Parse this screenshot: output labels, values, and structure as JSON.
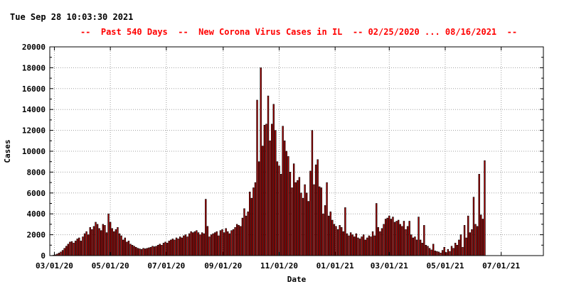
{
  "header": {
    "timestamp": "Tue Sep 28 10:03:30 2021",
    "title": "--  Past 540 Days  --  New Corona Virus Cases in IL  -- 02/25/2020 ... 08/16/2021  --"
  },
  "colors": {
    "bar_fill": "#b00000",
    "bar_outline": "#000000",
    "title": "#ff0000",
    "grid": "#a0a0a0"
  },
  "chart_data": {
    "type": "bar",
    "title": "--  Past 540 Days  --  New Corona Virus Cases in IL  -- 02/25/2020 ... 08/16/2021  --",
    "xlabel": "Date",
    "ylabel": "Cases",
    "date_range": [
      "2020-02-25",
      "2021-08-16"
    ],
    "ylim": [
      0,
      20000
    ],
    "y_ticks": [
      0,
      2000,
      4000,
      6000,
      8000,
      10000,
      12000,
      14000,
      16000,
      18000,
      20000
    ],
    "x_ticks": [
      "03/01/20",
      "05/01/20",
      "07/01/20",
      "09/01/20",
      "11/01/20",
      "01/01/21",
      "03/01/21",
      "05/01/21",
      "07/01/21"
    ],
    "grid": true,
    "legend": "none",
    "bar_interval_days": 2,
    "series": [
      {
        "values": [
          0,
          20,
          40,
          80,
          150,
          250,
          350,
          500,
          700,
          900,
          1100,
          1300,
          1350,
          1200,
          1400,
          1600,
          1700,
          1400,
          1800,
          2100,
          2300,
          2000,
          2700,
          2500,
          2800,
          3200,
          3000,
          2600,
          2400,
          3000,
          2900,
          2200,
          4000,
          3200,
          2600,
          2300,
          2500,
          2700,
          2100,
          1900,
          1500,
          1700,
          1300,
          1400,
          1100,
          1000,
          900,
          800,
          700,
          650,
          600,
          700,
          650,
          700,
          750,
          800,
          900,
          850,
          900,
          1000,
          1100,
          1000,
          1200,
          1300,
          1200,
          1400,
          1500,
          1600,
          1500,
          1700,
          1600,
          1800,
          1700,
          1900,
          2000,
          1800,
          2100,
          2300,
          2200,
          2300,
          2400,
          2200,
          2000,
          2200,
          2100,
          5400,
          2800,
          1800,
          2000,
          2100,
          2200,
          2300,
          1900,
          2400,
          2500,
          2200,
          2600,
          2300,
          2100,
          2400,
          2500,
          2700,
          3000,
          2900,
          2800,
          3600,
          4500,
          3800,
          4200,
          6100,
          5500,
          6500,
          7000,
          14900,
          9000,
          18000,
          10500,
          12500,
          12600,
          15300,
          11000,
          12600,
          14500,
          12000,
          9000,
          8600,
          7800,
          12400,
          11000,
          10000,
          9500,
          8000,
          6500,
          8800,
          7000,
          7200,
          7500,
          6000,
          5500,
          6800,
          6000,
          5200,
          8100,
          12000,
          6800,
          8700,
          9200,
          6600,
          6500,
          4000,
          4800,
          7000,
          3800,
          4200,
          3400,
          3000,
          2800,
          2500,
          2900,
          2700,
          2300,
          4600,
          2100,
          1900,
          2200,
          2000,
          1800,
          2100,
          1700,
          1600,
          1800,
          2000,
          1500,
          1700,
          1900,
          1800,
          2300,
          1900,
          5000,
          2700,
          2300,
          2600,
          3000,
          3500,
          3600,
          3800,
          3500,
          3700,
          3200,
          3300,
          3400,
          3000,
          2800,
          3300,
          2500,
          2800,
          3300,
          2000,
          1700,
          1800,
          1500,
          3700,
          1500,
          1200,
          2900,
          1000,
          900,
          700,
          550,
          1100,
          450,
          400,
          350,
          250,
          500,
          800,
          300,
          600,
          400,
          900,
          700,
          1200,
          1000,
          1500,
          2000,
          800,
          2900,
          1700,
          3800,
          2200,
          2500,
          5600,
          3000,
          2800,
          7800,
          3900,
          3500,
          9100
        ]
      }
    ]
  }
}
